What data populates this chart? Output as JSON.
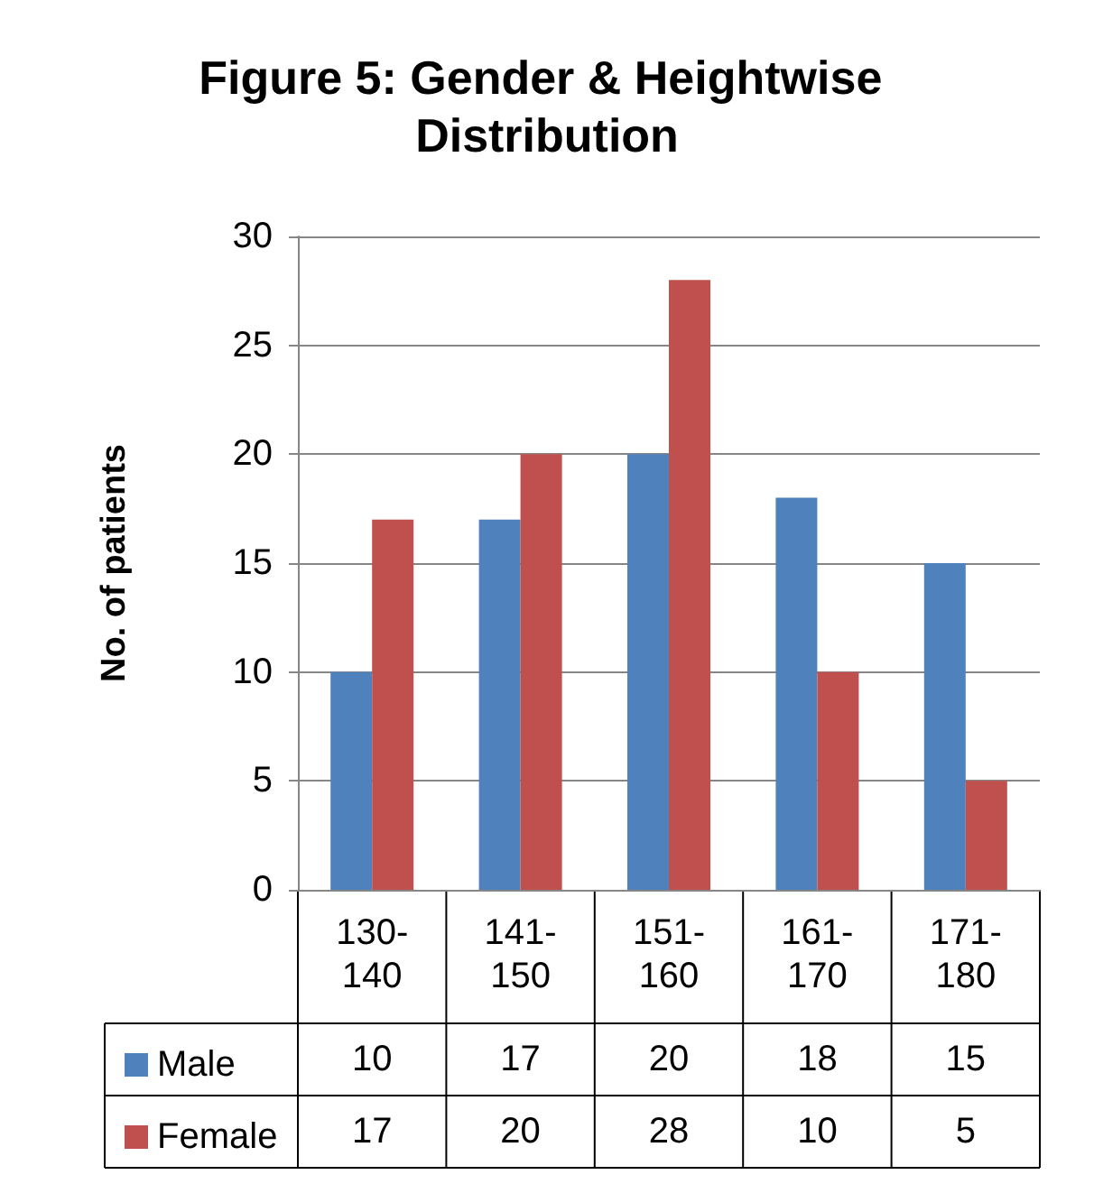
{
  "chart_data": {
    "type": "bar",
    "title": "Figure 5: Gender & Heightwise Distribution",
    "ylabel": "No. of patients",
    "categories": [
      "130-140",
      "141-150",
      "151-160",
      "161-170",
      "171-180"
    ],
    "series": [
      {
        "name": "Male",
        "color": "#4f81bd",
        "values": [
          10,
          17,
          20,
          18,
          15
        ]
      },
      {
        "name": "Female",
        "color": "#c0504d",
        "values": [
          17,
          20,
          28,
          10,
          5
        ]
      }
    ],
    "ylim": [
      0,
      30
    ],
    "yticks": [
      0,
      5,
      10,
      15,
      20,
      25,
      30
    ],
    "grid": "y",
    "legend": "bottom",
    "data_labels": true
  }
}
